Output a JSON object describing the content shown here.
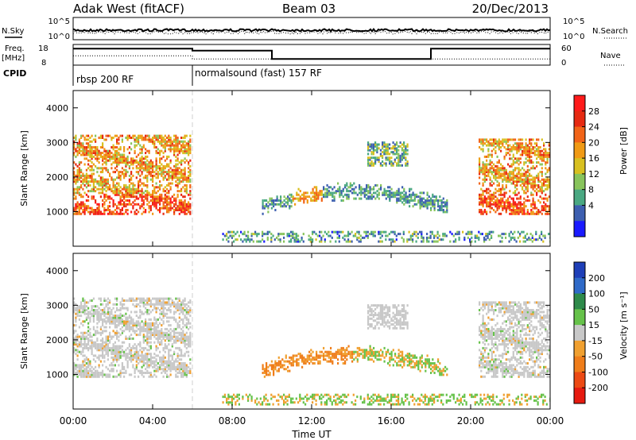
{
  "header": {
    "site": "Adak West (fitACF)",
    "beam": "Beam 03",
    "date": "20/Dec/2013"
  },
  "top_panels": {
    "nsky_label": "N.Sky",
    "nsearch_label": "N.Search",
    "noise_ticks": [
      "10^5",
      "10^0"
    ],
    "freq_label": [
      "Freq.",
      "[MHz]"
    ],
    "freq_ticks": [
      "18",
      "8"
    ],
    "nave_label": "Nave",
    "nave_ticks": [
      "60",
      "0"
    ],
    "cpid_label": "CPID",
    "cpid_segments": [
      {
        "label": "rbsp 200 RF",
        "start": 0,
        "end": 6
      },
      {
        "label": "normalsound (fast) 157 RF",
        "start": 6,
        "end": 24
      }
    ],
    "freq_steps": [
      {
        "start": 0,
        "end": 6,
        "level": 0.8
      },
      {
        "start": 6,
        "end": 10,
        "level": 0.7
      },
      {
        "start": 10,
        "end": 18,
        "level": 0.3
      },
      {
        "start": 18,
        "end": 24,
        "level": 0.8
      }
    ],
    "nave_steps": [
      {
        "start": 0,
        "end": 6,
        "level": 0.45
      },
      {
        "start": 6,
        "end": 24,
        "level": 0.3
      }
    ]
  },
  "chart_data": [
    {
      "type": "heatmap",
      "title": "Power",
      "ylabel": "Slant Range [km]",
      "yticks": [
        "1000",
        "2000",
        "3000",
        "4000"
      ],
      "ylim": [
        0,
        4500
      ],
      "xlim": [
        0,
        24
      ],
      "colorbar_label": "Power [dB]",
      "colorbar_ticks": [
        "4",
        "8",
        "12",
        "16",
        "20",
        "24",
        "28"
      ],
      "colorbar_colors": [
        "#1a1aff",
        "#3d5fb0",
        "#4aa882",
        "#88c45c",
        "#d8c020",
        "#f09a15",
        "#f26418",
        "#e62a12",
        "#ff1a1a"
      ],
      "echo_regions": [
        {
          "name": "dayside-early",
          "t0": 0.0,
          "t1": 5.9,
          "r0": 900,
          "r1": 3200,
          "value": 24
        },
        {
          "name": "dusk-echoes",
          "t0": 20.4,
          "t1": 24.0,
          "r0": 900,
          "r1": 3100,
          "value": 24
        },
        {
          "name": "midday-arc",
          "t0": 9.5,
          "t1": 18.8,
          "r0": 900,
          "r1": 1800,
          "value": 10
        },
        {
          "name": "far-range-patch",
          "t0": 14.8,
          "t1": 16.8,
          "r0": 2300,
          "r1": 3000,
          "value": 12
        },
        {
          "name": "ground-band",
          "t0": 7.5,
          "t1": 24.0,
          "r0": 100,
          "r1": 400,
          "value": 8
        }
      ]
    },
    {
      "type": "heatmap",
      "title": "Velocity",
      "ylabel": "Slant Range [km]",
      "yticks": [
        "1000",
        "2000",
        "3000",
        "4000"
      ],
      "ylim": [
        0,
        4500
      ],
      "xlim": [
        0,
        24
      ],
      "colorbar_label": "Velocity [m s⁻¹]",
      "colorbar_ticks": [
        "200",
        "100",
        "50",
        "15",
        "-15",
        "-50",
        "-100",
        "-200"
      ],
      "colorbar_colors": [
        "#1e3fb8",
        "#2f6ac8",
        "#2e8a4a",
        "#66c24a",
        "#c8c8c8",
        "#f0a030",
        "#ef7d1a",
        "#ec4a14",
        "#e61a10"
      ],
      "echo_regions": [
        {
          "name": "dayside-early",
          "t0": 0.0,
          "t1": 5.9,
          "r0": 900,
          "r1": 3200,
          "value": 0
        },
        {
          "name": "dusk-echoes",
          "t0": 20.4,
          "t1": 24.0,
          "r0": 900,
          "r1": 3100,
          "value": 0
        },
        {
          "name": "midday-arc",
          "t0": 9.5,
          "t1": 18.8,
          "r0": 900,
          "r1": 1800,
          "value": -60
        },
        {
          "name": "far-range-patch",
          "t0": 14.8,
          "t1": 16.8,
          "r0": 2300,
          "r1": 3000,
          "value": 0
        },
        {
          "name": "ground-band",
          "t0": 7.5,
          "t1": 24.0,
          "r0": 100,
          "r1": 400,
          "value": 20
        }
      ]
    }
  ],
  "xaxis": {
    "label": "Time UT",
    "ticks": [
      "00:00",
      "04:00",
      "08:00",
      "12:00",
      "16:00",
      "20:00",
      "00:00"
    ],
    "tick_hours": [
      0,
      4,
      8,
      12,
      16,
      20,
      24
    ]
  }
}
